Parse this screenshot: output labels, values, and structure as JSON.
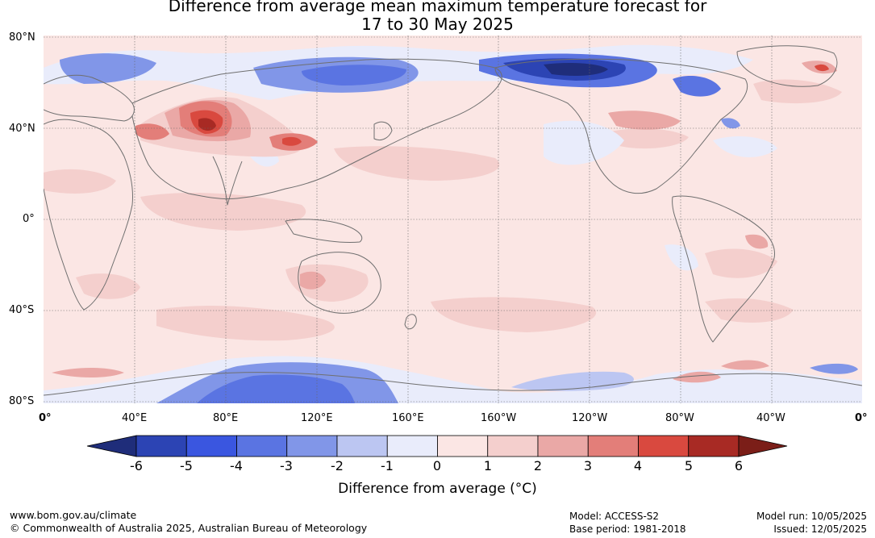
{
  "title": {
    "line1": "Difference from average mean maximum temperature forecast for",
    "line2": "17 to 30 May 2025"
  },
  "map": {
    "lat_labels": [
      "80°N",
      "40°N",
      "0°",
      "40°S",
      "80°S"
    ],
    "lon_labels": [
      "0°",
      "40°E",
      "80°E",
      "120°E",
      "160°E",
      "160°W",
      "120°W",
      "80°W",
      "40°W",
      "0°"
    ]
  },
  "colorbar": {
    "ticks": [
      "-6",
      "-5",
      "-4",
      "-3",
      "-2",
      "-1",
      "0",
      "1",
      "2",
      "3",
      "4",
      "5",
      "6"
    ],
    "colors": [
      "#1f2d7a",
      "#2c44b4",
      "#3a56e0",
      "#5a74e2",
      "#8196e8",
      "#bcc6f2",
      "#e9ecfb",
      "#fbe6e4",
      "#f4cfcd",
      "#eaa8a6",
      "#e37e79",
      "#d9493f",
      "#a82a24",
      "#7b1e18"
    ],
    "label": "Difference from average (°C)"
  },
  "footer": {
    "url": "www.bom.gov.au/climate",
    "copyright": "© Commonwealth of Australia 2025, Australian Bureau of Meteorology",
    "model": "Model: ACCESS-S2",
    "base_period": "Base period: 1981-2018",
    "model_run": "Model run: 10/05/2025",
    "issued": "Issued: 12/05/2025"
  }
}
